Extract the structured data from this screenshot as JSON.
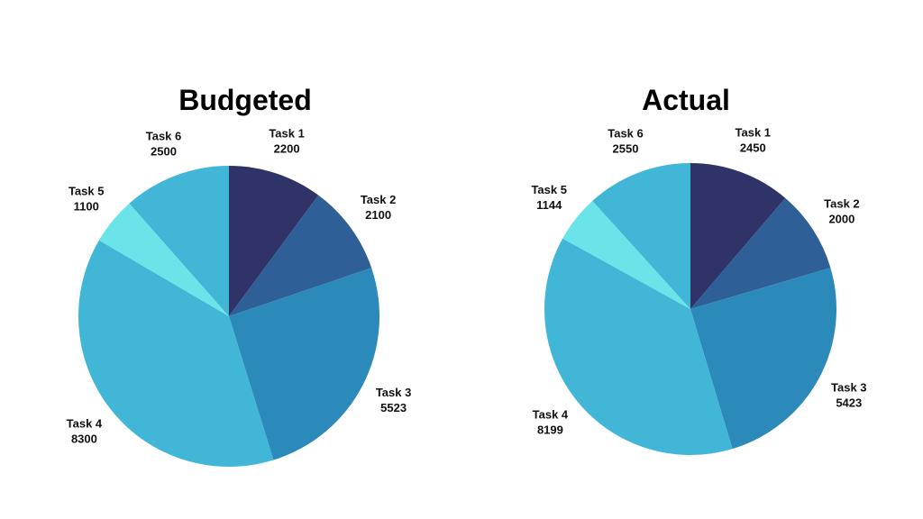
{
  "chart_data": [
    {
      "type": "pie",
      "title": "Budgeted",
      "slices": [
        {
          "label": "Task 1",
          "value": 2200,
          "color": "#2f3368"
        },
        {
          "label": "Task 2",
          "value": 2100,
          "color": "#2e5f97"
        },
        {
          "label": "Task 3",
          "value": 5523,
          "color": "#2c8abb"
        },
        {
          "label": "Task 4",
          "value": 8300,
          "color": "#42b6d7"
        },
        {
          "label": "Task 5",
          "value": 1100,
          "color": "#6ae4e8"
        },
        {
          "label": "Task 6",
          "value": 2500,
          "color": "#42b6d7"
        }
      ]
    },
    {
      "type": "pie",
      "title": "Actual",
      "slices": [
        {
          "label": "Task 1",
          "value": 2450,
          "color": "#2f3368"
        },
        {
          "label": "Task 2",
          "value": 2000,
          "color": "#2e5f97"
        },
        {
          "label": "Task 3",
          "value": 5423,
          "color": "#2c8abb"
        },
        {
          "label": "Task 4",
          "value": 8199,
          "color": "#42b6d7"
        },
        {
          "label": "Task 5",
          "value": 1144,
          "color": "#6ae4e8"
        },
        {
          "label": "Task 6",
          "value": 2550,
          "color": "#42b6d7"
        }
      ]
    }
  ]
}
